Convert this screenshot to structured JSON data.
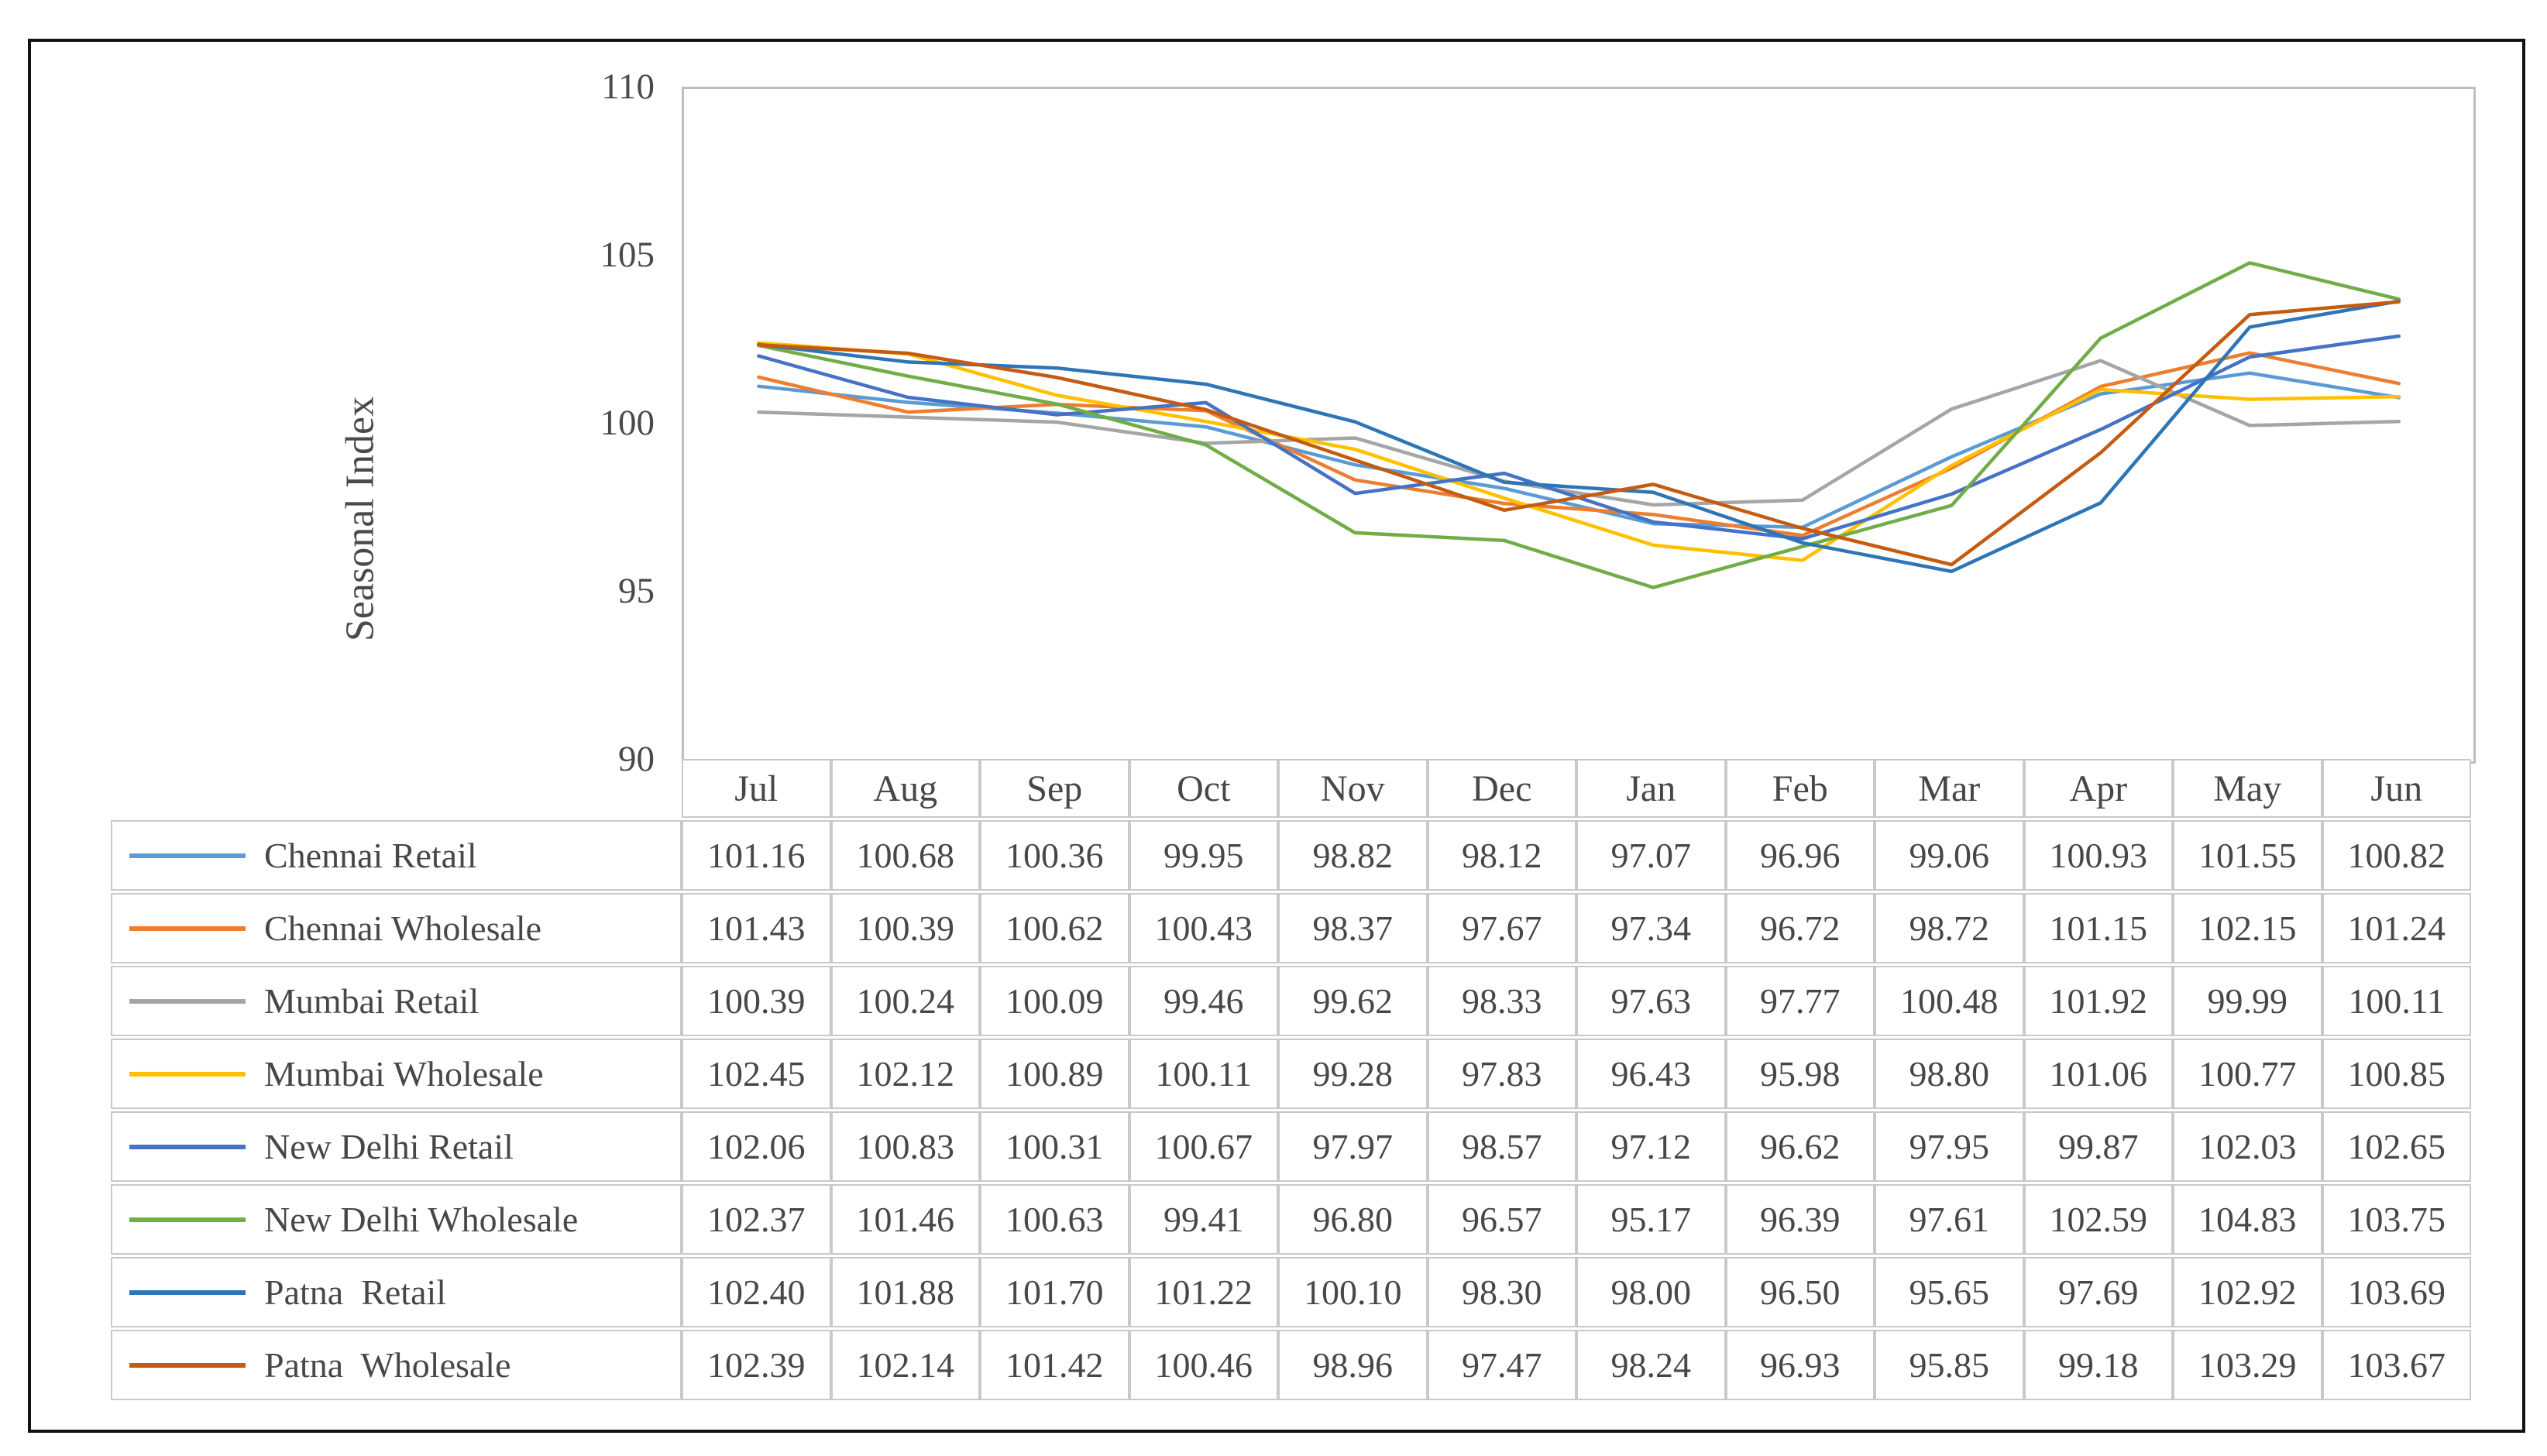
{
  "chart_data": {
    "type": "line",
    "title": "",
    "xlabel": "",
    "ylabel": "Seasonal Index",
    "ylim": [
      90,
      110
    ],
    "yticks": [
      90,
      95,
      100,
      105,
      110
    ],
    "grid": false,
    "legend_position": "table-left-column",
    "value_format": "2dp",
    "categories": [
      "Jul",
      "Aug",
      "Sep",
      "Oct",
      "Nov",
      "Dec",
      "Jan",
      "Feb",
      "Mar",
      "Apr",
      "May",
      "Jun"
    ],
    "series": [
      {
        "name": "Chennai Retail",
        "color": "#5B9BD5",
        "values": [
          101.16,
          100.68,
          100.36,
          99.95,
          98.82,
          98.12,
          97.07,
          96.96,
          99.06,
          100.93,
          101.55,
          100.82
        ]
      },
      {
        "name": "Chennai Wholesale",
        "color": "#ED7D31",
        "values": [
          101.43,
          100.39,
          100.62,
          100.43,
          98.37,
          97.67,
          97.34,
          96.72,
          98.72,
          101.15,
          102.15,
          101.24
        ]
      },
      {
        "name": "Mumbai Retail",
        "color": "#A5A5A5",
        "values": [
          100.39,
          100.24,
          100.09,
          99.46,
          99.62,
          98.33,
          97.63,
          97.77,
          100.48,
          101.92,
          99.99,
          100.11
        ]
      },
      {
        "name": "Mumbai Wholesale",
        "color": "#FFC000",
        "values": [
          102.45,
          102.12,
          100.89,
          100.11,
          99.28,
          97.83,
          96.43,
          95.98,
          98.8,
          101.06,
          100.77,
          100.85
        ]
      },
      {
        "name": "New Delhi Retail",
        "color": "#4472C4",
        "values": [
          102.06,
          100.83,
          100.31,
          100.67,
          97.97,
          98.57,
          97.12,
          96.62,
          97.95,
          99.87,
          102.03,
          102.65
        ]
      },
      {
        "name": "New Delhi Wholesale",
        "color": "#70AD47",
        "values": [
          102.37,
          101.46,
          100.63,
          99.41,
          96.8,
          96.57,
          95.17,
          96.39,
          97.61,
          102.59,
          104.83,
          103.75
        ]
      },
      {
        "name": "Patna  Retail",
        "color": "#2E75B6",
        "values": [
          102.4,
          101.88,
          101.7,
          101.22,
          100.1,
          98.3,
          98.0,
          96.5,
          95.65,
          97.69,
          102.92,
          103.69
        ]
      },
      {
        "name": "Patna  Wholesale",
        "color": "#C55A11",
        "values": [
          102.39,
          102.14,
          101.42,
          100.46,
          98.96,
          97.47,
          98.24,
          96.93,
          95.85,
          99.18,
          103.29,
          103.67
        ]
      }
    ]
  }
}
